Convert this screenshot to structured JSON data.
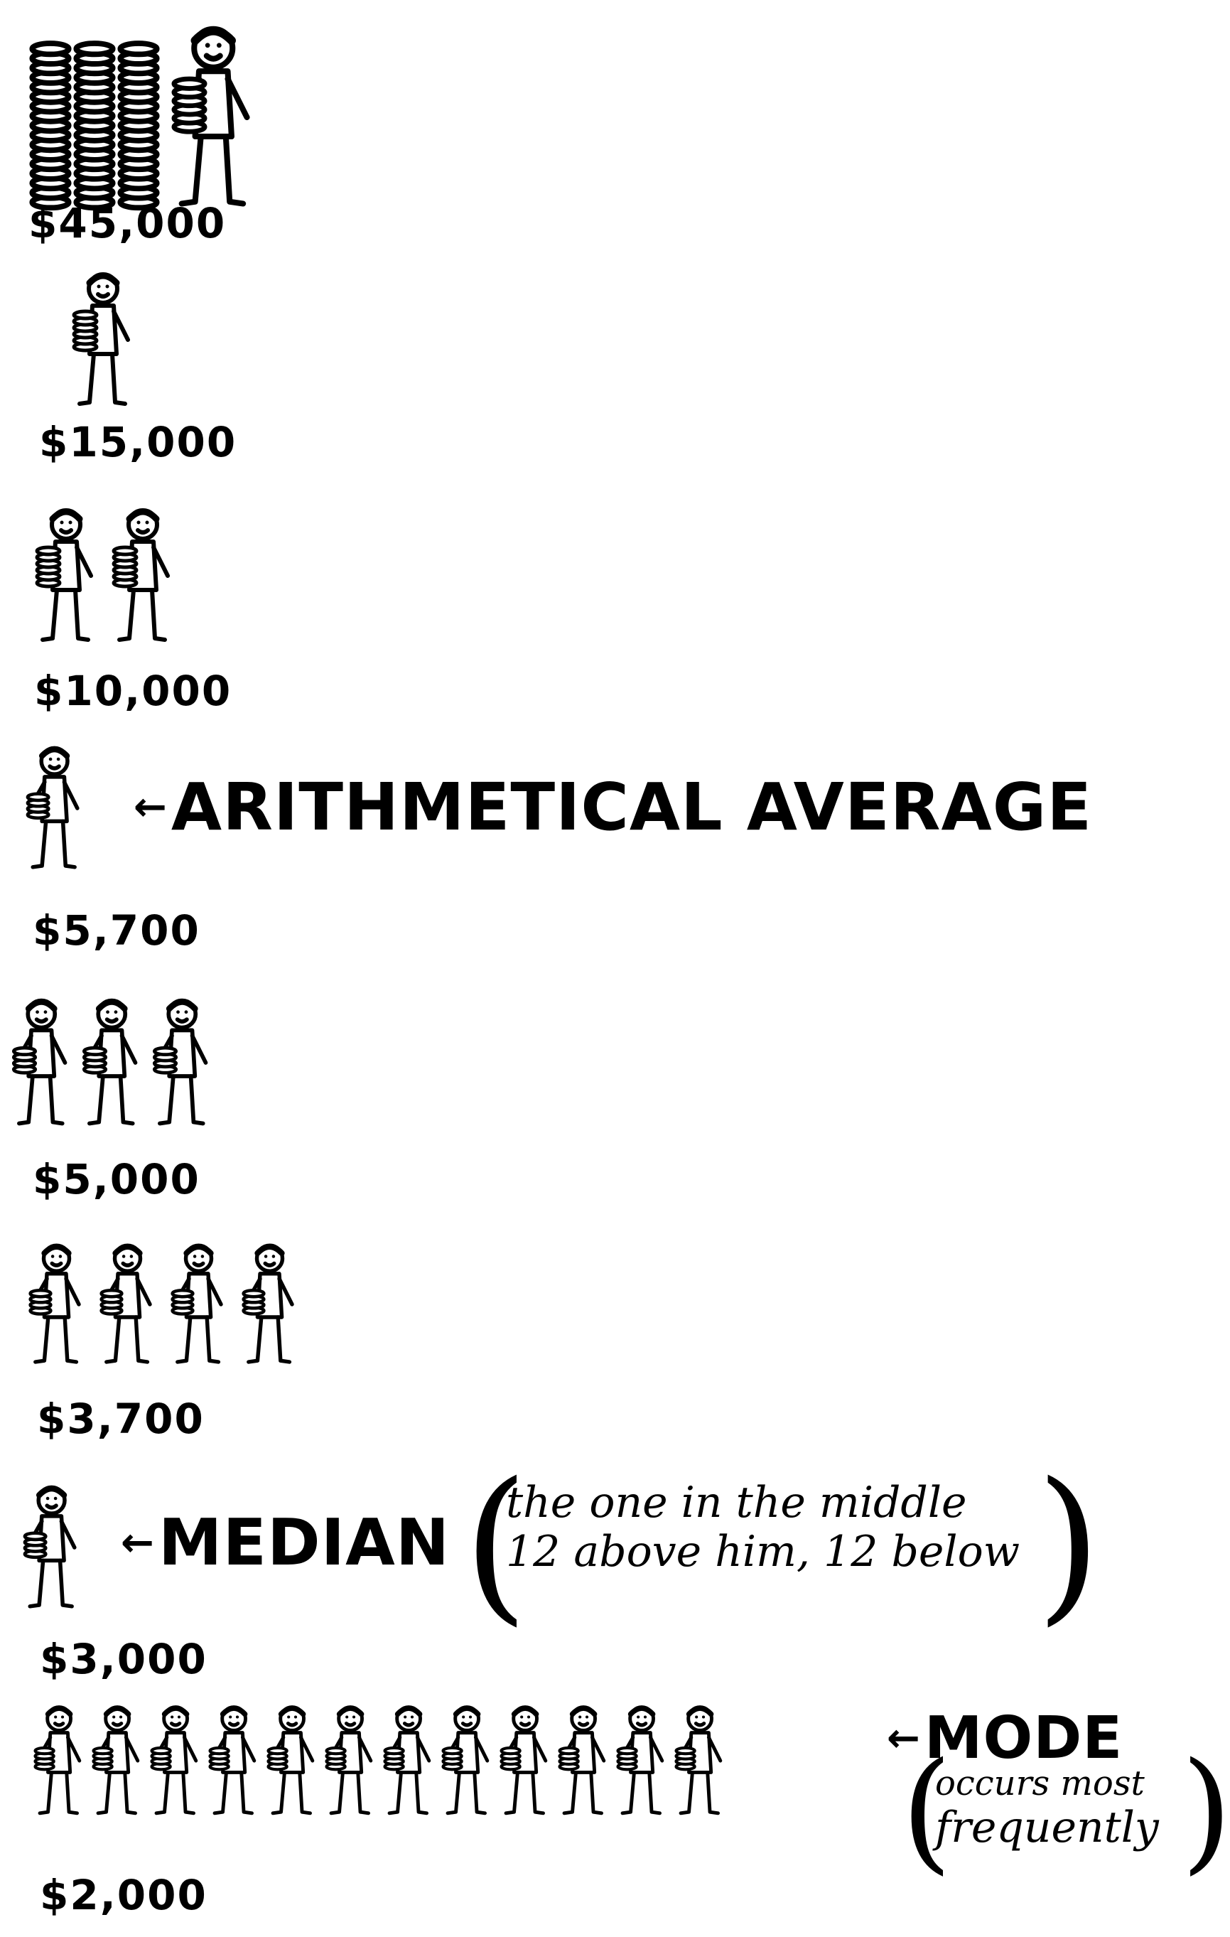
{
  "chart_data": {
    "type": "pictograph",
    "title": "",
    "rows": [
      {
        "salary": "$45,000",
        "people": 1,
        "value": 45000
      },
      {
        "salary": "$15,000",
        "people": 1,
        "value": 15000
      },
      {
        "salary": "$10,000",
        "people": 2,
        "value": 10000
      },
      {
        "salary": "$5,700",
        "people": 1,
        "value": 5700,
        "callout": "ARITHMETICAL AVERAGE"
      },
      {
        "salary": "$5,000",
        "people": 3,
        "value": 5000
      },
      {
        "salary": "$3,700",
        "people": 4,
        "value": 3700
      },
      {
        "salary": "$3,000",
        "people": 1,
        "value": 3000,
        "callout": "MEDIAN",
        "note": [
          "the one in the middle",
          "12 above him, 12 below"
        ]
      },
      {
        "salary": "$2,000",
        "people": 12,
        "value": 2000,
        "callout": "MODE",
        "note": [
          "occurs most",
          "frequently"
        ]
      }
    ],
    "colors": {
      "ink": "#000000",
      "paper": "#ffffff"
    }
  },
  "icons": {
    "person": "person-icon",
    "coins": "coin-stack-icon",
    "arrow": "arrow-left-icon"
  }
}
